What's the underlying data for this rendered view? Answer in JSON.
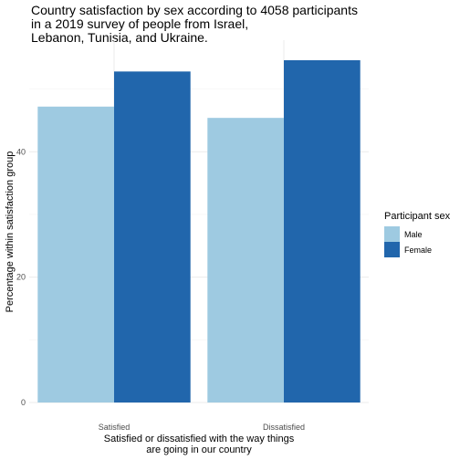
{
  "chart_data": {
    "type": "bar",
    "title_lines": [
      "Country satisfaction by sex according to 4058 participants",
      "in a 2019 survey of people from Israel,",
      "Lebanon, Tunisia, and Ukraine."
    ],
    "xlabel_lines": [
      "Satisfied or dissatisfied with the way things",
      "are going in our country"
    ],
    "ylabel": "Percentage within satisfaction group",
    "categories": [
      "Satisfied",
      "Dissatisfied"
    ],
    "series": [
      {
        "name": "Male",
        "values": [
          47.2,
          45.4
        ],
        "color": "#9ecae1"
      },
      {
        "name": "Female",
        "values": [
          52.8,
          54.6
        ],
        "color": "#2166ac"
      }
    ],
    "ylim": [
      0,
      57.8
    ],
    "yticks": [
      0,
      20,
      40
    ],
    "grid": true,
    "legend": {
      "title": "Participant sex",
      "placement": "right"
    }
  }
}
